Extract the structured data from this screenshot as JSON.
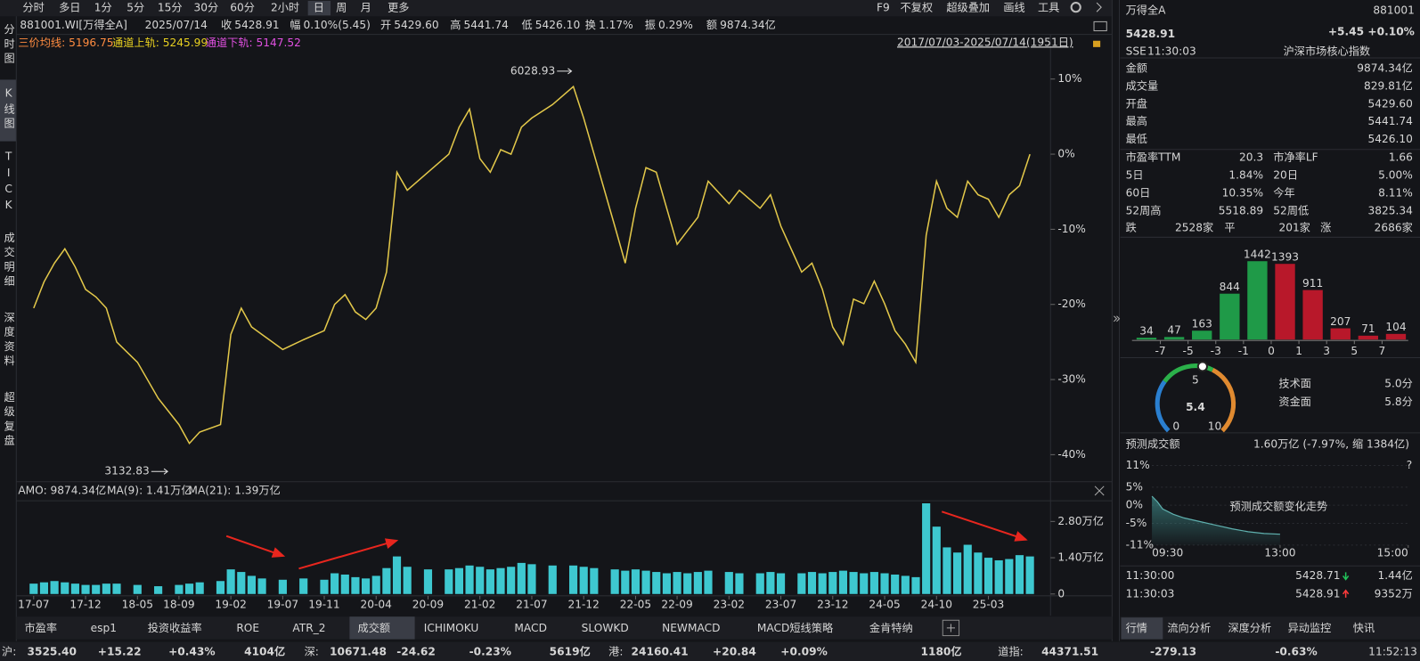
{
  "toolbar": {
    "periods": [
      "分时",
      "多日",
      "1分",
      "5分",
      "15分",
      "30分",
      "60分",
      "2小时",
      "日",
      "周",
      "月",
      "更多"
    ],
    "tools": [
      "F9",
      "不复权",
      "超级叠加",
      "画线",
      "工具"
    ]
  },
  "side_tabs": [
    "分时图",
    "K线图",
    "TICK",
    "成交明细",
    "深度资料",
    "超级复盘"
  ],
  "quote": {
    "code": "881001.WI[万得全A]",
    "date": "2025/07/14",
    "fields": [
      {
        "label": "收",
        "value": "5428.91"
      },
      {
        "label": "幅",
        "value": "0.10%(5.45)"
      },
      {
        "label": "开",
        "value": "5429.60"
      },
      {
        "label": "高",
        "value": "5441.74"
      },
      {
        "label": "低",
        "value": "5426.10"
      },
      {
        "label": "换",
        "value": "1.17%"
      },
      {
        "label": "振",
        "value": "0.29%"
      },
      {
        "label": "额",
        "value": "9874.34亿"
      }
    ]
  },
  "indicators": [
    {
      "label": "三价均线: ",
      "value": "5196.75"
    },
    {
      "label": "通道上轨: ",
      "value": "5245.99"
    },
    {
      "label": "通道下轨: ",
      "value": "5147.52"
    }
  ],
  "date_range": "2017/07/03-2025/07/14(1951日)",
  "amount_legend": [
    "AMO: 9874.34亿",
    "MA(9): 1.41万亿",
    "MA(21): 1.39万亿"
  ],
  "indicator_tabs": [
    "市盈率",
    "esp1",
    "投资收益率",
    "ROE",
    "ATR_2",
    "成交额",
    "ICHIMOKU",
    "MACD",
    "SLOWKD",
    "NEWMACD",
    "MACD短线策略",
    "金肯特纳"
  ],
  "chart_data": [
    {
      "type": "line",
      "color": "#e3c84a",
      "annotations": [
        "6028.93",
        "3132.83"
      ],
      "x": [
        0,
        1,
        2,
        3,
        4,
        5,
        6,
        7,
        8,
        10,
        12,
        14,
        15,
        16,
        18,
        19,
        20,
        21,
        22,
        24,
        26,
        28,
        29,
        30,
        31,
        32,
        33,
        34,
        35,
        36,
        38,
        40,
        41,
        42,
        43,
        44,
        45,
        46,
        47,
        48,
        50,
        52,
        53,
        54,
        56,
        57,
        58,
        59,
        60,
        61,
        62,
        63,
        64,
        65,
        67,
        68,
        70,
        71,
        72,
        74,
        75,
        76,
        77,
        78,
        79,
        80,
        81,
        82,
        83,
        84,
        85,
        86,
        87,
        88,
        89,
        90,
        91,
        92,
        93,
        94,
        95,
        96
      ],
      "values": [
        -20.5,
        -17,
        -14.5,
        -12.6,
        -15,
        -18,
        -19,
        -20.5,
        -25,
        -27.7,
        -32.5,
        -36,
        -38.5,
        -37,
        -36,
        -24,
        -20.5,
        -23,
        -24,
        -26,
        -24.7,
        -23.5,
        -20,
        -18.7,
        -21,
        -22,
        -20.5,
        -15.7,
        -2.4,
        -4.8,
        -2.4,
        0,
        3.6,
        6,
        -0.6,
        -2.4,
        0.6,
        0,
        3.6,
        4.8,
        6.6,
        9,
        4.8,
        0,
        -9.6,
        -14.5,
        -7.2,
        -1.8,
        -2.4,
        -7.2,
        -12,
        -10.2,
        -8.4,
        -3.6,
        -6.6,
        -4.8,
        -7.2,
        -5.4,
        -9.6,
        -15.7,
        -14.5,
        -18,
        -23,
        -25.3,
        -19.3,
        -19.9,
        -16.9,
        -19.9,
        -23.5,
        -25.3,
        -27.7,
        -10.8,
        -3.6,
        -7.2,
        -8.4,
        -3.6,
        -5.4,
        -6,
        -8.4,
        -5.4,
        -4.2,
        0
      ],
      "xlim": [
        -1.5,
        96.5
      ],
      "ylim": [
        -43.6,
        15.7
      ],
      "yticks": [
        {
          "value": 10,
          "label": "10%"
        },
        {
          "value": 0,
          "label": "0%"
        },
        {
          "value": -10,
          "label": "-10%"
        },
        {
          "value": -20,
          "label": "-20%"
        },
        {
          "value": -30,
          "label": "-30%"
        },
        {
          "value": -40,
          "label": "-40%"
        }
      ]
    },
    {
      "type": "bar",
      "color": "#3ec8d0",
      "x": [
        0,
        1,
        2,
        3,
        4,
        5,
        6,
        7,
        8,
        10,
        12,
        14,
        15,
        16,
        18,
        19,
        20,
        21,
        22,
        24,
        26,
        28,
        29,
        30,
        31,
        32,
        33,
        34,
        35,
        36,
        38,
        40,
        41,
        42,
        43,
        44,
        45,
        46,
        47,
        48,
        50,
        52,
        53,
        54,
        56,
        57,
        58,
        59,
        60,
        61,
        62,
        63,
        64,
        65,
        67,
        68,
        70,
        71,
        72,
        74,
        75,
        76,
        77,
        78,
        79,
        80,
        81,
        82,
        83,
        84,
        85,
        86,
        87,
        88,
        89,
        90,
        91,
        92,
        93,
        94,
        95,
        96
      ],
      "values": [
        0.4,
        0.45,
        0.5,
        0.45,
        0.4,
        0.35,
        0.35,
        0.4,
        0.4,
        0.35,
        0.3,
        0.35,
        0.4,
        0.45,
        0.5,
        0.95,
        0.85,
        0.7,
        0.6,
        0.55,
        0.6,
        0.55,
        0.8,
        0.75,
        0.65,
        0.6,
        0.7,
        1.0,
        1.45,
        1.05,
        0.95,
        0.95,
        1.0,
        1.1,
        1.05,
        0.95,
        1.0,
        1.05,
        1.2,
        1.15,
        1.1,
        1.1,
        1.05,
        1.0,
        0.95,
        0.9,
        0.95,
        0.9,
        0.85,
        0.8,
        0.85,
        0.8,
        0.85,
        0.9,
        0.85,
        0.8,
        0.8,
        0.85,
        0.8,
        0.8,
        0.85,
        0.8,
        0.85,
        0.9,
        0.85,
        0.8,
        0.85,
        0.8,
        0.75,
        0.7,
        0.65,
        3.5,
        2.6,
        1.8,
        1.6,
        1.9,
        1.6,
        1.4,
        1.3,
        1.35,
        1.5,
        1.45
      ],
      "xlim": [
        -1.5,
        96.5
      ],
      "ylim": [
        0,
        3.6
      ],
      "yticks": [
        {
          "value": 2.8,
          "label": "2.80万亿"
        },
        {
          "value": 1.4,
          "label": "1.40万亿"
        },
        0
      ],
      "xticks": [
        {
          "value": 0,
          "label": "17-07"
        },
        {
          "value": 5,
          "label": "17-12"
        },
        {
          "value": 10,
          "label": "18-05"
        },
        {
          "value": 14,
          "label": "18-09"
        },
        {
          "value": 19,
          "label": "19-02"
        },
        {
          "value": 24,
          "label": "19-07"
        },
        {
          "value": 28,
          "label": "19-11"
        },
        {
          "value": 33,
          "label": "20-04"
        },
        {
          "value": 38,
          "label": "20-09"
        },
        {
          "value": 43,
          "label": "21-02"
        },
        {
          "value": 48,
          "label": "21-07"
        },
        {
          "value": 53,
          "label": "21-12"
        },
        {
          "value": 58,
          "label": "22-05"
        },
        {
          "value": 62,
          "label": "22-09"
        },
        {
          "value": 67,
          "label": "23-02"
        },
        {
          "value": 72,
          "label": "23-07"
        },
        {
          "value": 77,
          "label": "23-12"
        },
        {
          "value": 82,
          "label": "24-05"
        },
        {
          "value": 87,
          "label": "24-10"
        },
        {
          "value": 92,
          "label": "25-03"
        }
      ]
    },
    {
      "type": "bar",
      "values": [
        34,
        47,
        163,
        844,
        1442,
        1393,
        911,
        207,
        71,
        104
      ],
      "colors": [
        "#1f9a48",
        "#1f9a48",
        "#1f9a48",
        "#1f9a48",
        "#1f9a48",
        "#b8182a",
        "#b8182a",
        "#b8182a",
        "#b8182a",
        "#b8182a"
      ],
      "ylim": [
        0,
        1500
      ],
      "xticks": [
        -7,
        -5,
        -3,
        -1,
        0,
        1,
        3,
        5,
        7
      ]
    },
    {
      "type": "gauge",
      "value": 5.4,
      "lim": [
        0,
        10
      ],
      "ticks": [
        0,
        5,
        10
      ]
    },
    {
      "type": "area",
      "title": "预测成交额变化走势",
      "color": "#5fb0ae",
      "x": [
        0,
        5,
        10,
        20,
        30,
        45,
        60,
        75,
        90,
        105,
        120
      ],
      "values": [
        2.5,
        1,
        -1,
        -2.5,
        -3.5,
        -4.5,
        -5.5,
        -6.5,
        -7.3,
        -7.8,
        -8
      ],
      "xlim": [
        0,
        240
      ],
      "ylim": [
        -11,
        11
      ],
      "yticks": [
        {
          "value": 11,
          "label": "11%"
        },
        {
          "value": 5,
          "label": "5%"
        },
        {
          "value": 0,
          "label": "0%"
        },
        {
          "value": -5,
          "label": "-5%"
        },
        {
          "value": -11,
          "label": "-11%"
        }
      ],
      "xticks": [
        {
          "value": 0,
          "label": "09:30"
        },
        {
          "value": 120,
          "label": "13:00"
        },
        {
          "value": 240,
          "label": "15:00"
        }
      ]
    }
  ],
  "quote_panel": {
    "name": "万得全A",
    "code": "881001",
    "price": "5428.91",
    "change": "+5.45",
    "change_pct": "+0.10%",
    "exchange": "SSE",
    "time": "11:30:03",
    "index_desc": "沪深市场核心指数",
    "rows": [
      [
        "金额",
        "9874.34亿"
      ],
      [
        "成交量",
        "829.81亿"
      ],
      [
        "开盘",
        "5429.60"
      ],
      [
        "最高",
        "5441.74"
      ],
      [
        "最低",
        "5426.10"
      ]
    ],
    "pairs": [
      [
        "市盈率TTM",
        "20.3",
        "市净率LF",
        "1.66"
      ],
      [
        "5日",
        "1.84%",
        "20日",
        "5.00%"
      ],
      [
        "60日",
        "10.35%",
        "今年",
        "8.11%"
      ],
      [
        "52周高",
        "5518.89",
        "52周低",
        "3825.34"
      ]
    ],
    "breadth": [
      "跌",
      "2528家",
      "平",
      "201家",
      "涨",
      "2686家"
    ]
  },
  "gauge_scores": [
    [
      "技术面",
      "5.0分"
    ],
    [
      "资金面",
      "5.8分"
    ]
  ],
  "forecast": {
    "label": "预测成交额",
    "value": "1.60万亿 (-7.97%, 缩 1384亿)"
  },
  "ticks_table": [
    [
      "11:30:00",
      "5428.71",
      "1.44亿"
    ],
    [
      "11:30:03",
      "5428.91",
      "9352万"
    ]
  ],
  "sidebar_tabs": [
    "行情",
    "流向分析",
    "深度分析",
    "异动监控",
    "快讯"
  ],
  "status": [
    {
      "label": "沪:",
      "values": [
        "3525.40",
        "+15.22",
        "+0.43%",
        "4104亿"
      ]
    },
    {
      "label": "深:",
      "values": [
        "10671.48",
        "-24.62",
        "-0.23%",
        "5619亿"
      ]
    },
    {
      "label": "港:",
      "values": [
        "24160.41",
        "+20.84",
        "+0.09%",
        "1180亿"
      ]
    },
    {
      "label": "道指:",
      "values": [
        "44371.51",
        "-279.13",
        "-0.63%"
      ]
    }
  ],
  "time": "11:52:13"
}
